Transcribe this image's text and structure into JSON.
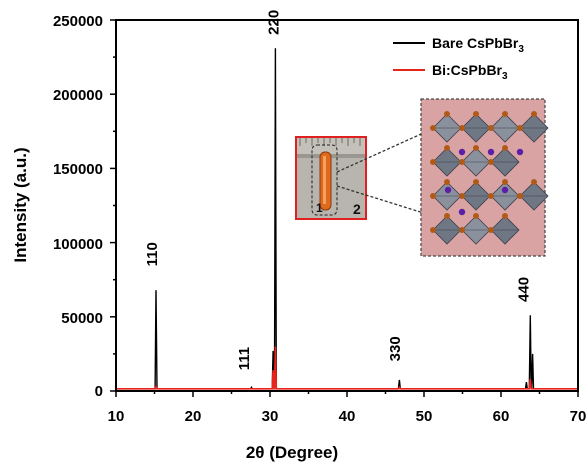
{
  "chart_data": {
    "type": "line",
    "xlabel": "2θ (Degree)",
    "ylabel": "Intensity (a.u.)",
    "xlim": [
      10,
      70
    ],
    "ylim": [
      0,
      250000
    ],
    "x_ticks": [
      "10",
      "20",
      "30",
      "40",
      "50",
      "60",
      "70"
    ],
    "y_ticks": [
      "0",
      "50000",
      "100000",
      "150000",
      "200000",
      "250000"
    ],
    "grid": false,
    "legend_position": "top-right",
    "series": [
      {
        "name": "Bare CsPbBr3",
        "name_main": "Bare CsPbBr",
        "name_sub": "3",
        "color": "#000000",
        "baseline": 1500,
        "peaks": [
          {
            "x": 15.2,
            "y": 68000
          },
          {
            "x": 27.6,
            "y": 2500
          },
          {
            "x": 30.4,
            "y": 27000
          },
          {
            "x": 30.7,
            "y": 231000
          },
          {
            "x": 46.8,
            "y": 7500
          },
          {
            "x": 63.3,
            "y": 6000
          },
          {
            "x": 63.8,
            "y": 51000
          },
          {
            "x": 64.1,
            "y": 25000
          }
        ]
      },
      {
        "name": "Bi:CsPbBr3",
        "name_main": "Bi:CsPbBr",
        "name_sub": "3",
        "color": "#e8231c",
        "baseline": 1500,
        "peaks": [
          {
            "x": 15.2,
            "y": 3000
          },
          {
            "x": 30.4,
            "y": 14000
          },
          {
            "x": 30.7,
            "y": 30000
          },
          {
            "x": 46.8,
            "y": 2500
          },
          {
            "x": 63.8,
            "y": 8000
          }
        ]
      }
    ],
    "annotations": [
      {
        "text": "110",
        "x": 15.3,
        "y": 84000
      },
      {
        "text": "111",
        "x": 27.3,
        "y": 14000
      },
      {
        "text": "220",
        "x": 31.1,
        "y": 240000
      },
      {
        "text": "330",
        "x": 46.9,
        "y": 20000
      },
      {
        "text": "440",
        "x": 63.6,
        "y": 60000
      }
    ],
    "inset_photo_labels": [
      "1",
      "2"
    ]
  }
}
